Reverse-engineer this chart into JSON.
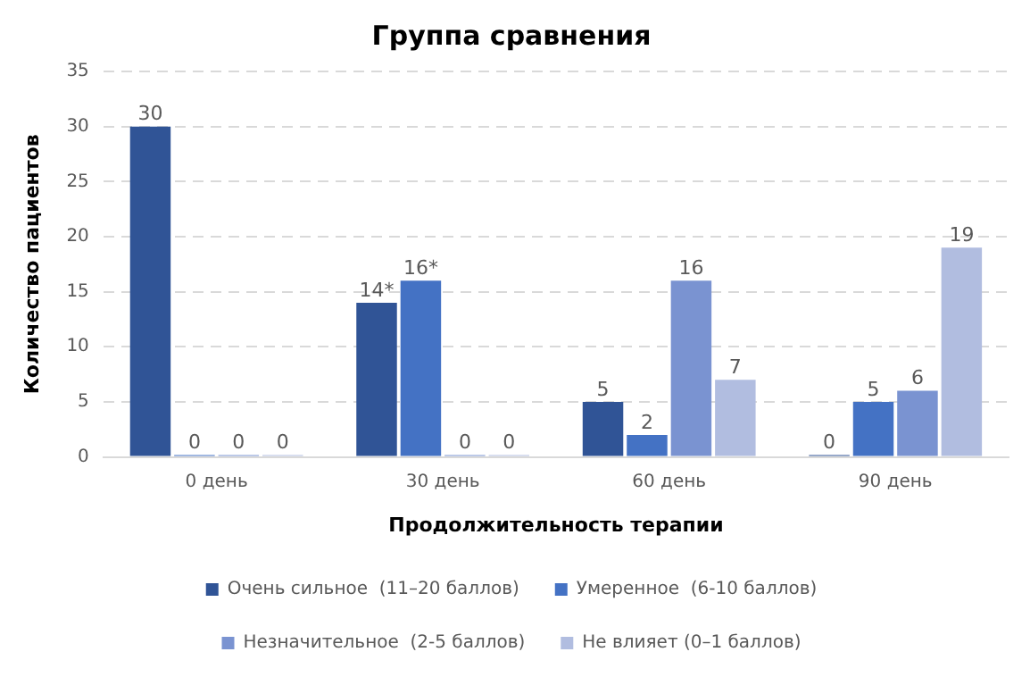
{
  "chart_data": {
    "type": "bar",
    "title": "Группа сравнения",
    "xlabel": "Продолжительность терапии",
    "ylabel": "Количество пациентов",
    "categories": [
      "0 день",
      "30 день",
      "60 день",
      "90 день"
    ],
    "series": [
      {
        "name": "Очень сильное  (11–20 баллов)",
        "color": "#305496",
        "values": [
          30,
          14,
          5,
          0
        ],
        "value_labels": [
          "30",
          "14*",
          "5",
          "0"
        ]
      },
      {
        "name": "Умеренное  (6-10 баллов)",
        "color": "#4472c4",
        "values": [
          0,
          16,
          2,
          5
        ],
        "value_labels": [
          "0",
          "16*",
          "2",
          "5"
        ]
      },
      {
        "name": "Незначительное  (2-5 баллов)",
        "color": "#7a93d1",
        "values": [
          0,
          0,
          16,
          6
        ],
        "value_labels": [
          "0",
          "0",
          "16",
          "6"
        ]
      },
      {
        "name": "Не влияет (0–1 баллов)",
        "color": "#b1bde0",
        "values": [
          0,
          0,
          7,
          19
        ],
        "value_labels": [
          "0",
          "0",
          "7",
          "19"
        ]
      }
    ],
    "ylim": [
      0,
      35
    ],
    "yticks": [
      0,
      5,
      10,
      15,
      20,
      25,
      30,
      35
    ],
    "grid": "y",
    "legend": "bottom"
  }
}
